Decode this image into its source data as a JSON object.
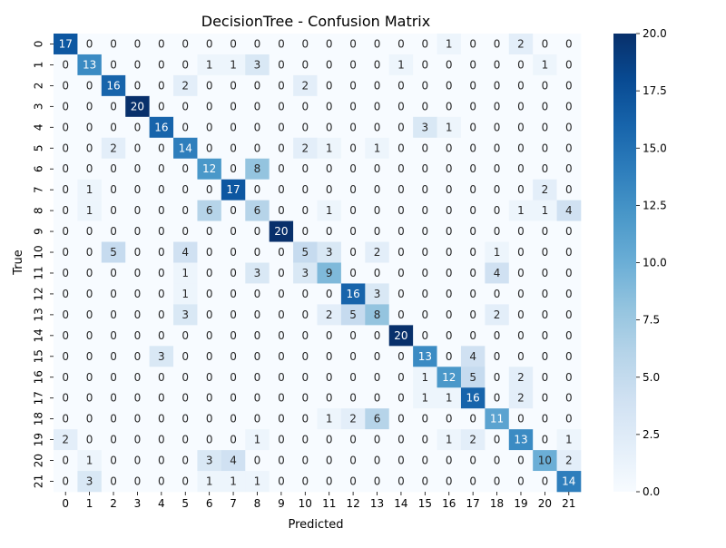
{
  "chart_data": {
    "type": "heatmap",
    "title": "DecisionTree - Confusion Matrix",
    "xlabel": "Predicted",
    "ylabel": "True",
    "x_tick_labels": [
      "0",
      "1",
      "2",
      "3",
      "4",
      "5",
      "6",
      "7",
      "8",
      "9",
      "10",
      "11",
      "12",
      "13",
      "14",
      "15",
      "16",
      "17",
      "18",
      "19",
      "20",
      "21"
    ],
    "y_tick_labels": [
      "0",
      "1",
      "2",
      "3",
      "4",
      "5",
      "6",
      "7",
      "8",
      "9",
      "10",
      "11",
      "12",
      "13",
      "14",
      "15",
      "16",
      "17",
      "18",
      "19",
      "20",
      "21"
    ],
    "values": [
      [
        17,
        0,
        0,
        0,
        0,
        0,
        0,
        0,
        0,
        0,
        0,
        0,
        0,
        0,
        0,
        0,
        1,
        0,
        0,
        2,
        0,
        0
      ],
      [
        0,
        13,
        0,
        0,
        0,
        0,
        1,
        1,
        3,
        0,
        0,
        0,
        0,
        0,
        1,
        0,
        0,
        0,
        0,
        0,
        1,
        0
      ],
      [
        0,
        0,
        16,
        0,
        0,
        2,
        0,
        0,
        0,
        0,
        2,
        0,
        0,
        0,
        0,
        0,
        0,
        0,
        0,
        0,
        0,
        0
      ],
      [
        0,
        0,
        0,
        20,
        0,
        0,
        0,
        0,
        0,
        0,
        0,
        0,
        0,
        0,
        0,
        0,
        0,
        0,
        0,
        0,
        0,
        0
      ],
      [
        0,
        0,
        0,
        0,
        16,
        0,
        0,
        0,
        0,
        0,
        0,
        0,
        0,
        0,
        0,
        3,
        1,
        0,
        0,
        0,
        0,
        0
      ],
      [
        0,
        0,
        2,
        0,
        0,
        14,
        0,
        0,
        0,
        0,
        2,
        1,
        0,
        1,
        0,
        0,
        0,
        0,
        0,
        0,
        0,
        0
      ],
      [
        0,
        0,
        0,
        0,
        0,
        0,
        12,
        0,
        8,
        0,
        0,
        0,
        0,
        0,
        0,
        0,
        0,
        0,
        0,
        0,
        0,
        0
      ],
      [
        0,
        1,
        0,
        0,
        0,
        0,
        0,
        17,
        0,
        0,
        0,
        0,
        0,
        0,
        0,
        0,
        0,
        0,
        0,
        0,
        2,
        0
      ],
      [
        0,
        1,
        0,
        0,
        0,
        0,
        6,
        0,
        6,
        0,
        0,
        1,
        0,
        0,
        0,
        0,
        0,
        0,
        0,
        1,
        1,
        4
      ],
      [
        0,
        0,
        0,
        0,
        0,
        0,
        0,
        0,
        0,
        20,
        0,
        0,
        0,
        0,
        0,
        0,
        0,
        0,
        0,
        0,
        0,
        0
      ],
      [
        0,
        0,
        5,
        0,
        0,
        4,
        0,
        0,
        0,
        0,
        5,
        3,
        0,
        2,
        0,
        0,
        0,
        0,
        1,
        0,
        0,
        0
      ],
      [
        0,
        0,
        0,
        0,
        0,
        1,
        0,
        0,
        3,
        0,
        3,
        9,
        0,
        0,
        0,
        0,
        0,
        0,
        4,
        0,
        0,
        0
      ],
      [
        0,
        0,
        0,
        0,
        0,
        1,
        0,
        0,
        0,
        0,
        0,
        0,
        16,
        3,
        0,
        0,
        0,
        0,
        0,
        0,
        0,
        0
      ],
      [
        0,
        0,
        0,
        0,
        0,
        3,
        0,
        0,
        0,
        0,
        0,
        2,
        5,
        8,
        0,
        0,
        0,
        0,
        2,
        0,
        0,
        0
      ],
      [
        0,
        0,
        0,
        0,
        0,
        0,
        0,
        0,
        0,
        0,
        0,
        0,
        0,
        0,
        20,
        0,
        0,
        0,
        0,
        0,
        0,
        0
      ],
      [
        0,
        0,
        0,
        0,
        3,
        0,
        0,
        0,
        0,
        0,
        0,
        0,
        0,
        0,
        0,
        13,
        0,
        4,
        0,
        0,
        0,
        0
      ],
      [
        0,
        0,
        0,
        0,
        0,
        0,
        0,
        0,
        0,
        0,
        0,
        0,
        0,
        0,
        0,
        1,
        12,
        5,
        0,
        2,
        0,
        0
      ],
      [
        0,
        0,
        0,
        0,
        0,
        0,
        0,
        0,
        0,
        0,
        0,
        0,
        0,
        0,
        0,
        1,
        1,
        16,
        0,
        2,
        0,
        0
      ],
      [
        0,
        0,
        0,
        0,
        0,
        0,
        0,
        0,
        0,
        0,
        0,
        1,
        2,
        6,
        0,
        0,
        0,
        0,
        11,
        0,
        0,
        0
      ],
      [
        2,
        0,
        0,
        0,
        0,
        0,
        0,
        0,
        1,
        0,
        0,
        0,
        0,
        0,
        0,
        0,
        1,
        2,
        0,
        13,
        0,
        1
      ],
      [
        0,
        1,
        0,
        0,
        0,
        0,
        3,
        4,
        0,
        0,
        0,
        0,
        0,
        0,
        0,
        0,
        0,
        0,
        0,
        0,
        10,
        2
      ],
      [
        0,
        3,
        0,
        0,
        0,
        0,
        1,
        1,
        1,
        0,
        0,
        0,
        0,
        0,
        0,
        0,
        0,
        0,
        0,
        0,
        0,
        14
      ]
    ],
    "vmin": 0,
    "vmax": 20,
    "colormap": "Blues",
    "colorbar_ticks": [
      "0.0",
      "2.5",
      "5.0",
      "7.5",
      "10.0",
      "12.5",
      "15.0",
      "17.5",
      "20.0"
    ],
    "grid": false,
    "legend": "colorbar-right"
  }
}
